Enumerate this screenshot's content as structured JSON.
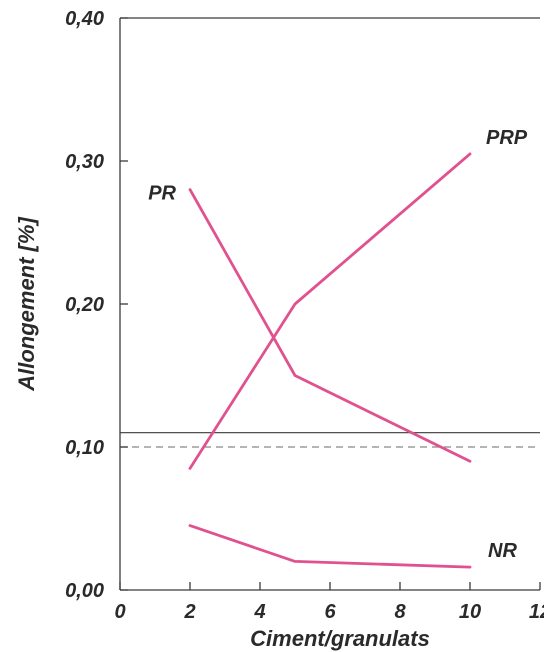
{
  "chart_data": {
    "type": "line",
    "title": "",
    "xlabel": "Ciment/granulats",
    "ylabel": "Allongement [%]",
    "xlim": [
      0,
      12
    ],
    "ylim": [
      0,
      0.4
    ],
    "xticks": [
      0,
      2,
      4,
      6,
      8,
      10,
      12
    ],
    "xtick_labels": [
      "0",
      "2",
      "4",
      "6",
      "8",
      "10",
      "12"
    ],
    "yticks": [
      0,
      0.1,
      0.2,
      0.3,
      0.4
    ],
    "ytick_labels": [
      "0,00",
      "0,10",
      "0,20",
      "0,30",
      "0,40"
    ],
    "grid": false,
    "legend": "none",
    "line_color": "#e0528f",
    "reference_lines": [
      {
        "y": 0.11,
        "style": "solid"
      },
      {
        "y": 0.1,
        "style": "dashed"
      }
    ],
    "series": [
      {
        "name": "PR",
        "x": [
          2,
          5,
          10
        ],
        "y": [
          0.28,
          0.15,
          0.09
        ]
      },
      {
        "name": "PRP",
        "x": [
          2,
          5,
          10
        ],
        "y": [
          0.085,
          0.2,
          0.305
        ]
      },
      {
        "name": "NR",
        "x": [
          2,
          5,
          10
        ],
        "y": [
          0.045,
          0.02,
          0.016
        ]
      }
    ]
  }
}
